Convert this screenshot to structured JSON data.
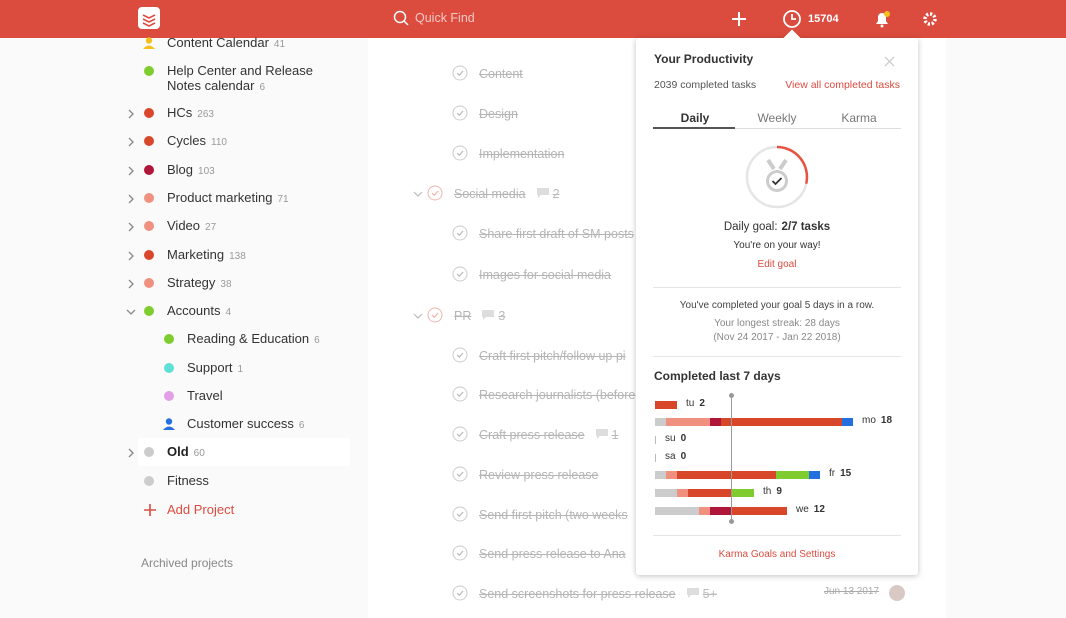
{
  "topbar": {
    "search": "Quick Find",
    "karma": "15704"
  },
  "sidebar": {
    "projects": [
      {
        "name": "Content Calendar",
        "count": 41,
        "color": "#f4c01e",
        "icon": "person",
        "level": 0
      },
      {
        "name": "Help Center and Release Notes calendar",
        "count": 6,
        "color": "#7ecc2e",
        "level": 0
      },
      {
        "name": "HCs",
        "count": 263,
        "color": "#d9472b",
        "expand": "collapsed",
        "level": 0
      },
      {
        "name": "Cycles",
        "count": 110,
        "color": "#d9472b",
        "expand": "collapsed",
        "level": 0
      },
      {
        "name": "Blog",
        "count": 103,
        "color": "#b0163a",
        "expand": "collapsed",
        "level": 0
      },
      {
        "name": "Product marketing",
        "count": 71,
        "color": "#f0907e",
        "expand": "collapsed",
        "level": 0
      },
      {
        "name": "Video",
        "count": 27,
        "color": "#f0907e",
        "expand": "collapsed",
        "level": 0
      },
      {
        "name": "Marketing",
        "count": 138,
        "color": "#d9472b",
        "expand": "collapsed",
        "level": 0
      },
      {
        "name": "Strategy",
        "count": 38,
        "color": "#f0907e",
        "expand": "collapsed",
        "level": 0
      },
      {
        "name": "Accounts",
        "count": 4,
        "color": "#7ecc2e",
        "expand": "expanded",
        "level": 0
      },
      {
        "name": "Reading & Education",
        "count": 6,
        "color": "#7ecc2e",
        "level": 1
      },
      {
        "name": "Support",
        "count": 1,
        "color": "#5fdfd5",
        "level": 1
      },
      {
        "name": "Travel",
        "color": "#e29fe8",
        "level": 1
      },
      {
        "name": "Customer success",
        "count": 6,
        "color": "#246fe0",
        "icon": "person",
        "level": 1
      },
      {
        "name": "Old",
        "count": 60,
        "color": "#cccccc",
        "expand": "collapsed",
        "level": 0,
        "selected": true
      },
      {
        "name": "Fitness",
        "color": "#cccccc",
        "level": 0
      }
    ],
    "add_project": "Add Project",
    "archived": "Archived projects"
  },
  "tasks": [
    {
      "text": "Content"
    },
    {
      "text": "Design"
    },
    {
      "text": "Implementation"
    },
    {
      "text": "Social media",
      "comments": "2",
      "parent": true
    },
    {
      "text": "Share first draft of SM posts"
    },
    {
      "text": "Images for social media"
    },
    {
      "text": "PR",
      "comments": "3",
      "parent": true
    },
    {
      "text": "Craft first pitch/follow up pi"
    },
    {
      "text": "Research journalists (before"
    },
    {
      "text": "Craft press release",
      "comments": "1"
    },
    {
      "text": "Review press release"
    },
    {
      "text": "Send first pitch (two weeks"
    },
    {
      "text": "Send press release to Ana"
    },
    {
      "text": "Send screenshots for press release",
      "comments": "5+",
      "date": "Jun 13 2017"
    }
  ],
  "productivity": {
    "title": "Your Productivity",
    "completed": "2039 completed tasks",
    "view_all": "View all completed tasks",
    "tabs": [
      "Daily",
      "Weekly",
      "Karma"
    ],
    "goal_label": "Daily goal:",
    "goal_value": "2/7 tasks",
    "encourage": "You're on your way!",
    "edit_goal": "Edit goal",
    "streak": "You've completed your goal 5 days in a row.",
    "longest": "Your longest streak: 28 days",
    "longest_dates": "(Nov 24 2017 - Jan 22 2018)",
    "chart_title": "Completed last 7 days",
    "days": [
      {
        "day": "tu",
        "total": 2,
        "segments": [
          {
            "color": "#d9472b",
            "value": 2
          }
        ]
      },
      {
        "day": "mo",
        "total": 18,
        "segments": [
          {
            "color": "#cccccc",
            "value": 1
          },
          {
            "color": "#f0907e",
            "value": 4
          },
          {
            "color": "#b0163a",
            "value": 1
          },
          {
            "color": "#d9472b",
            "value": 11
          },
          {
            "color": "#246fe0",
            "value": 1
          }
        ]
      },
      {
        "day": "su",
        "total": 0,
        "segments": []
      },
      {
        "day": "sa",
        "total": 0,
        "segments": []
      },
      {
        "day": "fr",
        "total": 15,
        "segments": [
          {
            "color": "#cccccc",
            "value": 1
          },
          {
            "color": "#f0907e",
            "value": 1
          },
          {
            "color": "#d9472b",
            "value": 9
          },
          {
            "color": "#7ecc2e",
            "value": 3
          },
          {
            "color": "#246fe0",
            "value": 1
          }
        ]
      },
      {
        "day": "th",
        "total": 9,
        "segments": [
          {
            "color": "#cccccc",
            "value": 2
          },
          {
            "color": "#f0907e",
            "value": 1
          },
          {
            "color": "#d9472b",
            "value": 4
          },
          {
            "color": "#7ecc2e",
            "value": 2
          }
        ]
      },
      {
        "day": "we",
        "total": 12,
        "segments": [
          {
            "color": "#cccccc",
            "value": 4
          },
          {
            "color": "#f0907e",
            "value": 1
          },
          {
            "color": "#b0163a",
            "value": 2
          },
          {
            "color": "#d9472b",
            "value": 5
          }
        ]
      }
    ],
    "settings": "Karma Goals and Settings"
  }
}
